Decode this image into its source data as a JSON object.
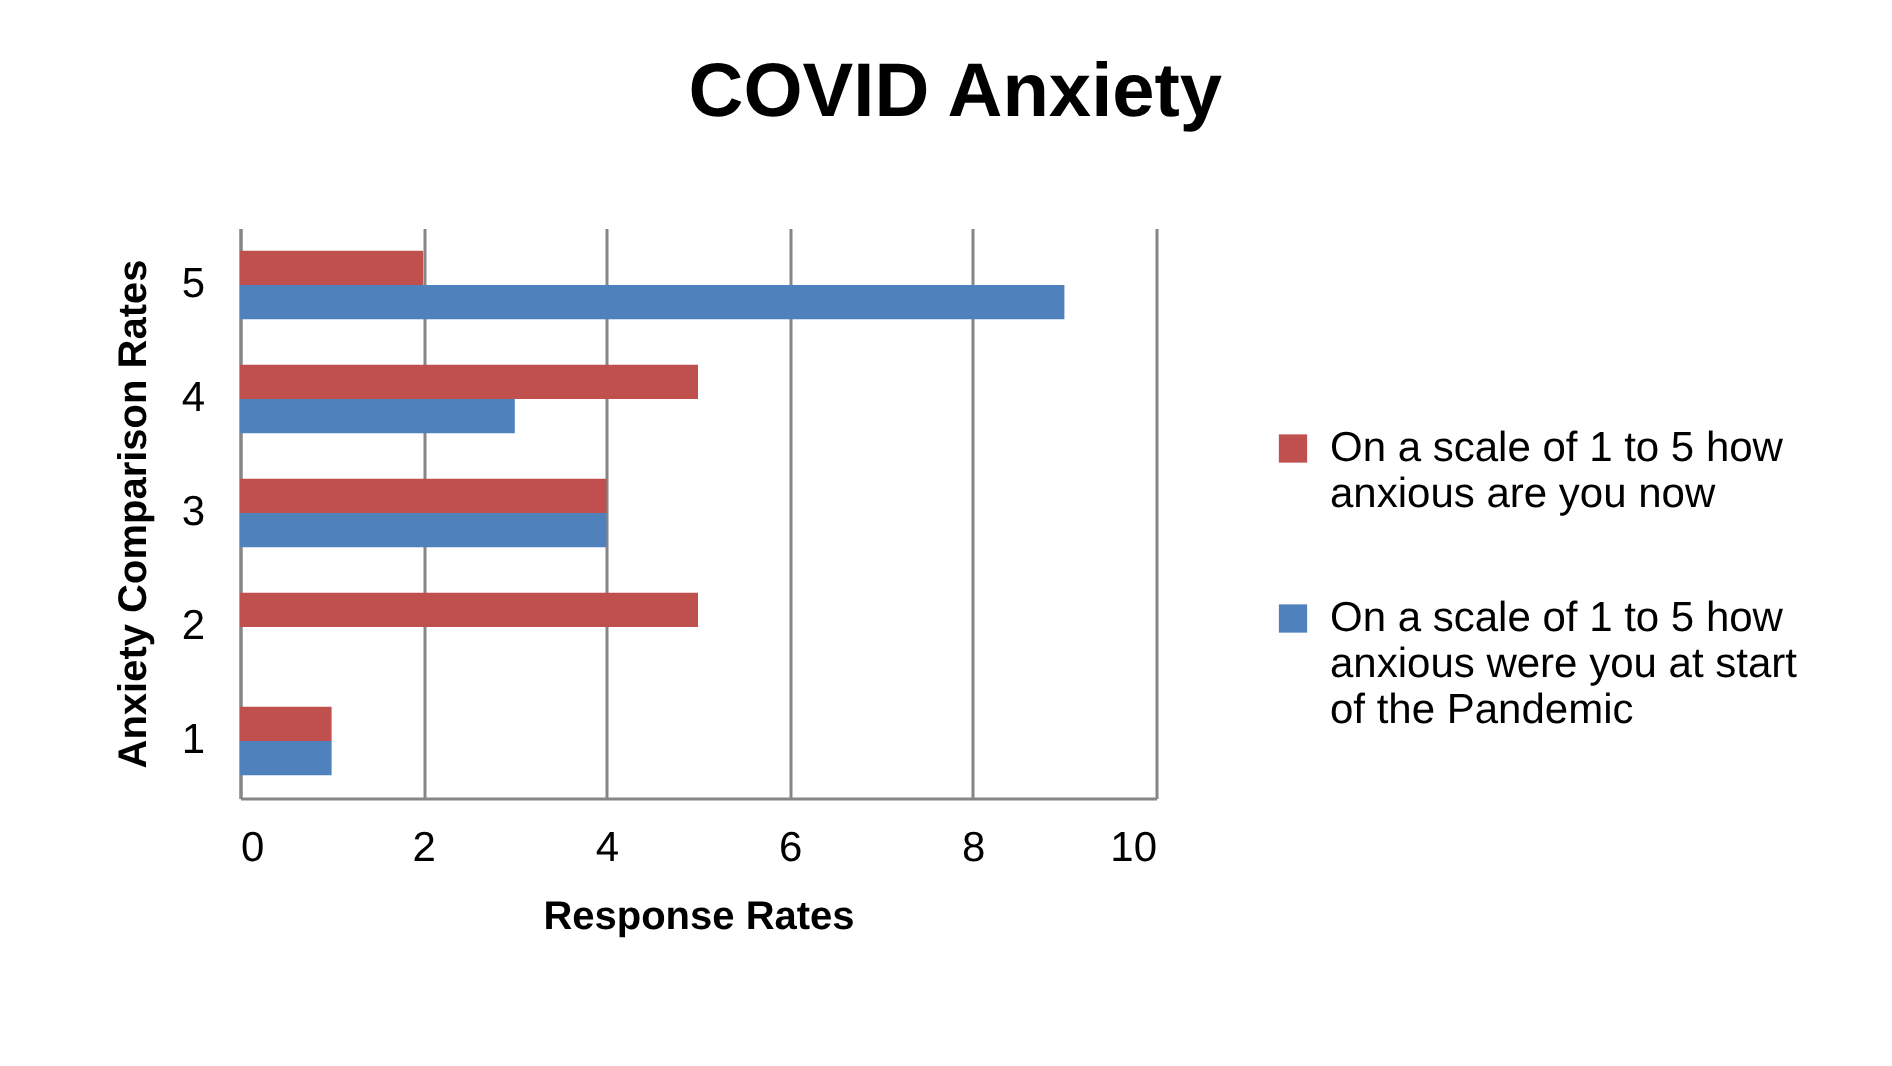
{
  "chart_data": {
    "type": "bar",
    "orientation": "horizontal",
    "title": "COVID Anxiety",
    "xlabel": "Response Rates",
    "ylabel": "Anxiety Comparison Rates",
    "categories": [
      "5",
      "4",
      "3",
      "2",
      "1"
    ],
    "series": [
      {
        "name": "On a scale of 1 to 5 how anxious are you now",
        "color": "#c0504d",
        "values": [
          2,
          5,
          4,
          5,
          1
        ]
      },
      {
        "name": "On a scale of 1 to 5 how anxious were you at start of the Pandemic",
        "color": "#4f81bd",
        "values": [
          9,
          3,
          4,
          null,
          1
        ]
      }
    ],
    "xlim": [
      0,
      10
    ],
    "xticks": [
      0,
      2,
      4,
      6,
      8,
      10
    ],
    "grid": "x",
    "legend": "right"
  }
}
